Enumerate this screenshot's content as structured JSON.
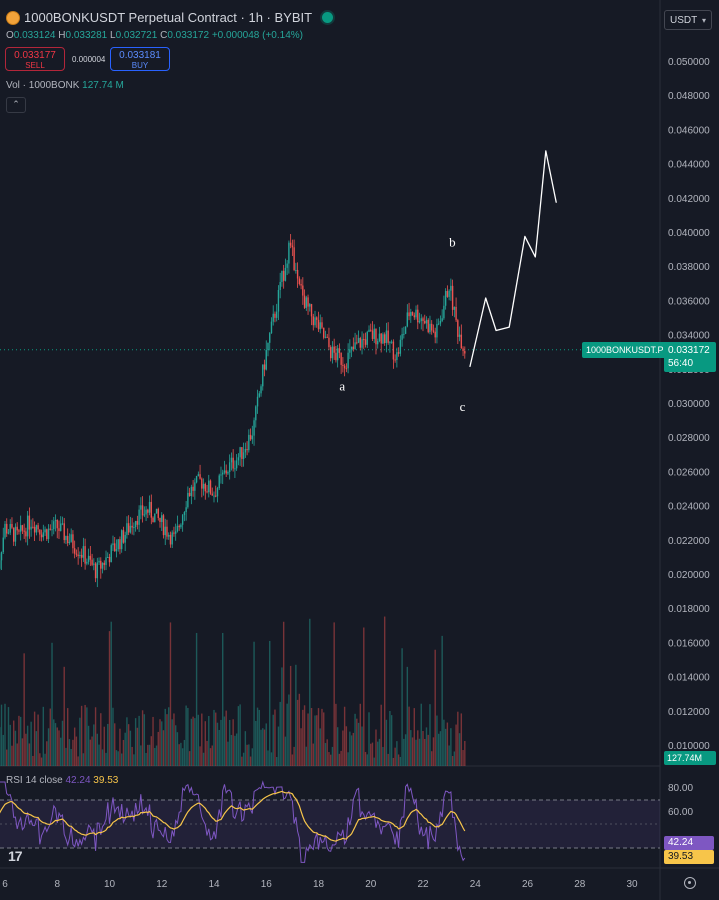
{
  "header": {
    "title": "1000BONKUSDT Perpetual Contract · 1h · BYBIT",
    "ohlc": {
      "o_label": "O",
      "o": "0.033124",
      "h_label": "H",
      "h": "0.033281",
      "l_label": "L",
      "l": "0.032721",
      "c_label": "C",
      "c": "0.033172",
      "change": "+0.000048 (+0.14%)"
    },
    "sell": {
      "price": "0.033177",
      "label": "SELL"
    },
    "buy": {
      "price": "0.033181",
      "label": "BUY"
    },
    "spread": "0.000004",
    "volume": {
      "label": "Vol · 1000BONK",
      "value": "127.74 M"
    },
    "currency": "USDT"
  },
  "price_axis": {
    "ticks": [
      "0.050000",
      "0.048000",
      "0.046000",
      "0.044000",
      "0.042000",
      "0.040000",
      "0.038000",
      "0.036000",
      "0.034000",
      "0.032000",
      "0.030000",
      "0.028000",
      "0.026000",
      "0.024000",
      "0.022000",
      "0.020000",
      "0.018000",
      "0.016000",
      "0.014000",
      "0.012000",
      "0.010000"
    ],
    "current_price": "0.033172",
    "countdown": "56:40",
    "symbol_tag": "1000BONKUSDT.P",
    "volume_tag": "127.74M"
  },
  "time_axis": {
    "ticks": [
      "6",
      "8",
      "10",
      "12",
      "14",
      "16",
      "18",
      "20",
      "22",
      "24",
      "26",
      "28",
      "30"
    ]
  },
  "annotations": {
    "a": "a",
    "b": "b",
    "c": "c"
  },
  "rsi": {
    "label": "RSI 14 close",
    "value": "42.24",
    "ma_value": "39.53",
    "ticks": [
      "80.00",
      "60.00"
    ]
  },
  "colors": {
    "up": "#26a69a",
    "down": "#ef5350",
    "background": "#161a25",
    "rsi_line": "#7e57c2",
    "rsi_ma": "#f7c54a"
  },
  "icons": {
    "logo": "tradingview-logo-icon",
    "settings": "gear-icon",
    "collapse": "chevron-up-icon",
    "coin": "bonk-coin-icon"
  },
  "chart_data": {
    "type": "candlestick",
    "x_unit": "day of month",
    "x": [
      5.6,
      6.0,
      6.5,
      7.0,
      7.5,
      8.0,
      8.5,
      9.0,
      9.5,
      10.0,
      10.5,
      11.0,
      11.5,
      12.0,
      12.5,
      13.0,
      13.5,
      14.0,
      14.5,
      15.0,
      15.5,
      16.0,
      16.5,
      16.9,
      17.2,
      17.6,
      18.0,
      18.5,
      19.0,
      19.5,
      20.0,
      20.5,
      21.0,
      21.5,
      22.0,
      22.5,
      23.0,
      23.3,
      23.6
    ],
    "close": [
      0.0195,
      0.0228,
      0.0222,
      0.0232,
      0.0225,
      0.0228,
      0.022,
      0.0212,
      0.0202,
      0.0212,
      0.0222,
      0.0234,
      0.0238,
      0.023,
      0.022,
      0.0248,
      0.0255,
      0.0248,
      0.0262,
      0.027,
      0.0285,
      0.033,
      0.0365,
      0.0395,
      0.037,
      0.0355,
      0.0345,
      0.033,
      0.0325,
      0.0335,
      0.034,
      0.034,
      0.0328,
      0.0355,
      0.035,
      0.034,
      0.037,
      0.0345,
      0.0332
    ],
    "y_range": [
      0.0095,
      0.051
    ],
    "projection_points": [
      [
        23.8,
        0.0322
      ],
      [
        24.4,
        0.0362
      ],
      [
        24.8,
        0.0343
      ],
      [
        25.3,
        0.0345
      ],
      [
        25.9,
        0.0398
      ],
      [
        26.3,
        0.0386
      ],
      [
        26.7,
        0.0448
      ],
      [
        27.1,
        0.0418
      ]
    ],
    "rsi_range": [
      15,
      95
    ],
    "rsi_ref_lines": [
      70,
      30
    ]
  }
}
